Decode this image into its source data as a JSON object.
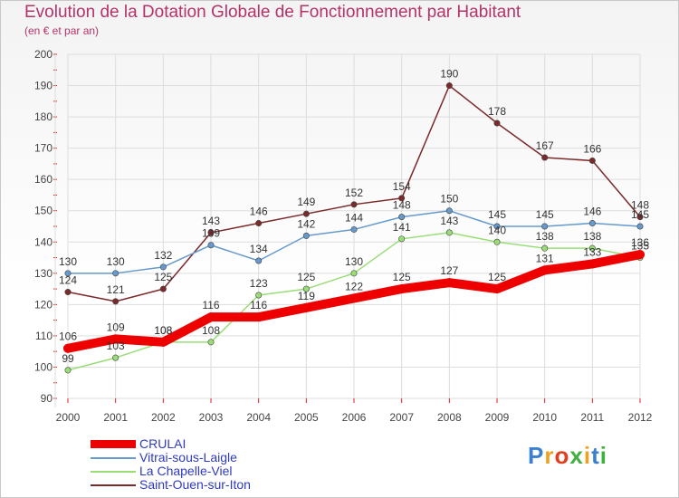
{
  "title": "Evolution de la Dotation Globale de Fonctionnement par Habitant",
  "subtitle": "(en € et par an)",
  "logo": "Proxiti",
  "chart_data": {
    "type": "line",
    "title": "Evolution de la Dotation Globale de Fonctionnement par Habitant",
    "ylabel": "(en € et par an)",
    "xlabel": "",
    "x": [
      "2000",
      "2001",
      "2002",
      "2003",
      "2004",
      "2005",
      "2006",
      "2007",
      "2008",
      "2009",
      "2010",
      "2011",
      "2012"
    ],
    "ylim": [
      90,
      200
    ],
    "yticks": [
      90,
      100,
      110,
      120,
      130,
      140,
      150,
      160,
      170,
      180,
      190,
      200
    ],
    "legend_position": "bottom-left",
    "series": [
      {
        "name": "CRULAI",
        "color": "#ee0000",
        "values": [
          106,
          109,
          108,
          116,
          116,
          119,
          122,
          125,
          127,
          125,
          131,
          133,
          136
        ]
      },
      {
        "name": "Vitrai-sous-Laigle",
        "color": "#6699cc",
        "values": [
          130,
          130,
          132,
          139,
          134,
          142,
          144,
          148,
          150,
          145,
          145,
          146,
          145
        ]
      },
      {
        "name": "La Chapelle-Viel",
        "color": "#99dd77",
        "values": [
          99,
          103,
          108,
          108,
          123,
          125,
          130,
          141,
          143,
          140,
          138,
          138,
          135
        ]
      },
      {
        "name": "Saint-Ouen-sur-Iton",
        "color": "#7a2a2a",
        "values": [
          124,
          121,
          125,
          143,
          146,
          149,
          152,
          154,
          190,
          178,
          167,
          166,
          148
        ]
      }
    ]
  }
}
